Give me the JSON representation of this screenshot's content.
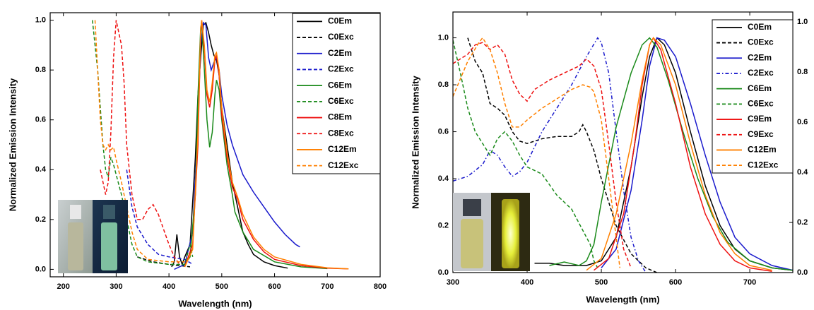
{
  "chart_data": [
    {
      "type": "line",
      "x_label": "Wavelength (nm)",
      "y_label": "Normalized Emission Intensity",
      "xlim": [
        175,
        800
      ],
      "ylim": [
        -0.03,
        1.03
      ],
      "xticks": [
        200,
        300,
        400,
        500,
        600,
        700,
        800
      ],
      "yticks": [
        {
          "value": 0,
          "label": "0.0"
        },
        0.2,
        0.4,
        0.6,
        0.8,
        {
          "value": 1,
          "label": "1.0"
        }
      ],
      "legend": "upper right",
      "series": [
        {
          "name": "C0Em",
          "color": "#000000",
          "dash": "solid",
          "x": [
            405,
            410,
            415,
            420,
            425,
            430,
            440,
            450,
            455,
            460,
            465,
            470,
            475,
            480,
            485,
            490,
            495,
            500,
            510,
            520,
            530,
            540,
            550,
            560,
            580,
            600,
            625
          ],
          "values": [
            0.01,
            0.03,
            0.14,
            0.05,
            0.02,
            0.05,
            0.1,
            0.45,
            0.7,
            0.85,
            0.98,
            0.99,
            0.95,
            0.9,
            0.86,
            0.84,
            0.78,
            0.65,
            0.5,
            0.35,
            0.25,
            0.15,
            0.1,
            0.06,
            0.03,
            0.015,
            0.005
          ]
        },
        {
          "name": "C0Exc",
          "color": "#000000",
          "dash": "dashed",
          "x": [
            340,
            370,
            400,
            420,
            440
          ],
          "values": [
            0.05,
            0.03,
            0.02,
            0.015,
            0.01
          ]
        },
        {
          "name": "C2Em",
          "color": "#1a1acc",
          "dash": "solid",
          "x": [
            410,
            430,
            445,
            455,
            460,
            465,
            470,
            475,
            480,
            485,
            490,
            495,
            500,
            510,
            520,
            530,
            540,
            560,
            580,
            600,
            620,
            640,
            648
          ],
          "values": [
            0.0,
            0.02,
            0.15,
            0.6,
            0.9,
            0.99,
            0.98,
            0.85,
            0.8,
            0.83,
            0.85,
            0.8,
            0.7,
            0.58,
            0.5,
            0.44,
            0.38,
            0.31,
            0.25,
            0.19,
            0.14,
            0.1,
            0.09
          ]
        },
        {
          "name": "C2Exc",
          "color": "#1a1acc",
          "dash": "dashed",
          "x": [
            320,
            330,
            340,
            360,
            380,
            400,
            430,
            445
          ],
          "values": [
            0.4,
            0.25,
            0.17,
            0.1,
            0.06,
            0.05,
            0.04,
            0.02
          ]
        },
        {
          "name": "C6Em",
          "color": "#1a8a1a",
          "dash": "solid",
          "x": [
            430,
            440,
            450,
            455,
            460,
            462,
            467,
            472,
            477,
            482,
            487,
            490,
            495,
            500,
            510,
            520,
            525,
            540,
            560,
            600,
            650,
            700
          ],
          "values": [
            0.02,
            0.05,
            0.3,
            0.7,
            0.97,
            0.99,
            0.8,
            0.6,
            0.49,
            0.55,
            0.7,
            0.76,
            0.72,
            0.6,
            0.42,
            0.3,
            0.23,
            0.15,
            0.08,
            0.03,
            0.01,
            0.003
          ]
        },
        {
          "name": "C6Exc",
          "color": "#1a8a1a",
          "dash": "dashed",
          "x": [
            255,
            265,
            275,
            280,
            285,
            290,
            295,
            300,
            310,
            320,
            330,
            340,
            360,
            400,
            430,
            440,
            445
          ],
          "values": [
            1.0,
            0.8,
            0.5,
            0.4,
            0.37,
            0.45,
            0.42,
            0.38,
            0.3,
            0.2,
            0.1,
            0.05,
            0.03,
            0.02,
            0.02,
            0.1,
            0.05
          ]
        },
        {
          "name": "C8Em",
          "color": "#ee1111",
          "dash": "solid",
          "x": [
            430,
            445,
            455,
            460,
            462,
            467,
            472,
            477,
            482,
            487,
            490,
            495,
            500,
            510,
            520,
            530,
            540,
            560,
            580,
            600,
            650,
            700,
            740
          ],
          "values": [
            0.01,
            0.1,
            0.5,
            0.95,
            1.0,
            0.88,
            0.7,
            0.65,
            0.72,
            0.84,
            0.86,
            0.78,
            0.62,
            0.45,
            0.33,
            0.28,
            0.2,
            0.12,
            0.07,
            0.04,
            0.015,
            0.005,
            0.002
          ]
        },
        {
          "name": "C8Exc",
          "color": "#ee1111",
          "dash": "dashed",
          "x": [
            270,
            280,
            285,
            290,
            295,
            300,
            305,
            310,
            315,
            320,
            330,
            340,
            350,
            360,
            370,
            380,
            390,
            400,
            410,
            420
          ],
          "values": [
            0.4,
            0.3,
            0.35,
            0.55,
            0.85,
            1.0,
            0.95,
            0.9,
            0.75,
            0.5,
            0.3,
            0.2,
            0.2,
            0.24,
            0.26,
            0.22,
            0.16,
            0.1,
            0.05,
            0.02
          ]
        },
        {
          "name": "C12Em",
          "color": "#ff8000",
          "dash": "solid",
          "x": [
            430,
            445,
            455,
            460,
            462,
            467,
            472,
            477,
            482,
            487,
            490,
            495,
            500,
            510,
            520,
            530,
            540,
            560,
            580,
            600,
            650,
            700,
            740
          ],
          "values": [
            0.01,
            0.08,
            0.55,
            0.96,
            1.0,
            0.9,
            0.72,
            0.67,
            0.75,
            0.86,
            0.87,
            0.8,
            0.65,
            0.47,
            0.35,
            0.29,
            0.22,
            0.13,
            0.08,
            0.05,
            0.02,
            0.006,
            0.002
          ]
        },
        {
          "name": "C12Exc",
          "color": "#ff8000",
          "dash": "dashed",
          "x": [
            260,
            265,
            270,
            275,
            280,
            285,
            290,
            295,
            300,
            310,
            320,
            330,
            340,
            360,
            400,
            430
          ],
          "values": [
            1.0,
            0.8,
            0.6,
            0.5,
            0.48,
            0.5,
            0.48,
            0.49,
            0.44,
            0.35,
            0.25,
            0.15,
            0.08,
            0.04,
            0.03,
            0.03
          ]
        }
      ]
    },
    {
      "type": "line",
      "x_label": "Wavelength (nm)",
      "y_label": "Normalized Emission Intensity",
      "xlim": [
        300,
        758
      ],
      "ylim": [
        0,
        1.11
      ],
      "y2lim": [
        0,
        1.04
      ],
      "xticks": [
        300,
        400,
        500,
        600,
        700
      ],
      "yticks": [
        {
          "value": 0,
          "label": "0.0"
        },
        0.2,
        0.4,
        0.6,
        0.8,
        {
          "value": 1,
          "label": "1.0"
        }
      ],
      "y2ticks": [
        {
          "value": 0,
          "label": "0.0"
        },
        0.2,
        0.4,
        0.6,
        0.8,
        {
          "value": 1,
          "label": "1.0"
        }
      ],
      "legend": "upper right",
      "series": [
        {
          "name": "C0Em",
          "color": "#000000",
          "dash": "solid",
          "x": [
            410,
            430,
            450,
            480,
            500,
            520,
            540,
            555,
            565,
            575,
            585,
            600,
            620,
            640,
            660,
            680,
            700,
            730,
            758
          ],
          "values": [
            0.04,
            0.04,
            0.03,
            0.03,
            0.05,
            0.15,
            0.45,
            0.75,
            0.92,
            1.0,
            0.97,
            0.85,
            0.6,
            0.37,
            0.2,
            0.1,
            0.05,
            0.02,
            0.01
          ]
        },
        {
          "name": "C0Exc",
          "color": "#000000",
          "dash": "dashed",
          "x": [
            320,
            330,
            340,
            350,
            360,
            370,
            380,
            390,
            400,
            420,
            440,
            460,
            470,
            475,
            480,
            490,
            500,
            520,
            540,
            560,
            575
          ],
          "values": [
            1.0,
            0.9,
            0.85,
            0.72,
            0.7,
            0.67,
            0.6,
            0.56,
            0.55,
            0.57,
            0.58,
            0.58,
            0.6,
            0.63,
            0.6,
            0.52,
            0.4,
            0.2,
            0.08,
            0.02,
            0.0
          ]
        },
        {
          "name": "C2Em",
          "color": "#1a1acc",
          "dash": "solid",
          "x": [
            500,
            520,
            540,
            555,
            565,
            575,
            585,
            600,
            620,
            640,
            660,
            680,
            700,
            730,
            758
          ],
          "values": [
            0.02,
            0.1,
            0.35,
            0.65,
            0.88,
            1.0,
            0.99,
            0.92,
            0.72,
            0.5,
            0.3,
            0.15,
            0.08,
            0.03,
            0.01
          ]
        },
        {
          "name": "C2Exc",
          "color": "#1a1acc",
          "dash": "dashdot",
          "x": [
            300,
            320,
            340,
            350,
            360,
            370,
            380,
            390,
            400,
            420,
            440,
            460,
            480,
            495,
            500,
            510,
            520,
            530,
            540,
            550,
            560
          ],
          "values": [
            0.39,
            0.41,
            0.46,
            0.52,
            0.5,
            0.45,
            0.41,
            0.43,
            0.47,
            0.6,
            0.7,
            0.8,
            0.92,
            1.0,
            0.98,
            0.85,
            0.6,
            0.35,
            0.15,
            0.05,
            0.0
          ]
        },
        {
          "name": "C6Em",
          "color": "#1a8a1a",
          "dash": "solid",
          "x": [
            430,
            450,
            470,
            480,
            490,
            500,
            520,
            540,
            555,
            565,
            575,
            590,
            610,
            630,
            650,
            670,
            700,
            730,
            758
          ],
          "values": [
            0.03,
            0.045,
            0.03,
            0.05,
            0.12,
            0.3,
            0.62,
            0.85,
            0.97,
            1.0,
            0.96,
            0.82,
            0.6,
            0.4,
            0.24,
            0.13,
            0.05,
            0.02,
            0.01
          ]
        },
        {
          "name": "C6Exc",
          "color": "#1a8a1a",
          "dash": "dashed",
          "x": [
            300,
            310,
            320,
            330,
            340,
            350,
            360,
            370,
            380,
            390,
            400,
            420,
            440,
            460,
            475,
            485,
            490,
            495
          ],
          "values": [
            0.99,
            0.85,
            0.7,
            0.6,
            0.55,
            0.5,
            0.57,
            0.6,
            0.56,
            0.5,
            0.45,
            0.42,
            0.33,
            0.27,
            0.18,
            0.12,
            0.05,
            0.02
          ]
        },
        {
          "name": "C9Em",
          "color": "#ee1111",
          "dash": "solid",
          "x": [
            490,
            510,
            530,
            545,
            555,
            565,
            570,
            580,
            600,
            620,
            640,
            660,
            680,
            700,
            730
          ],
          "values": [
            0.01,
            0.06,
            0.25,
            0.55,
            0.8,
            0.97,
            1.0,
            0.95,
            0.72,
            0.45,
            0.25,
            0.12,
            0.05,
            0.02,
            0.005
          ]
        },
        {
          "name": "C9Exc",
          "color": "#ee1111",
          "dash": "dashed",
          "x": [
            300,
            320,
            330,
            340,
            350,
            360,
            370,
            380,
            390,
            400,
            410,
            430,
            450,
            470,
            480,
            490,
            500,
            510,
            520,
            530,
            540
          ],
          "values": [
            0.89,
            0.93,
            0.97,
            0.98,
            0.95,
            0.97,
            0.93,
            0.82,
            0.76,
            0.73,
            0.78,
            0.82,
            0.85,
            0.88,
            0.91,
            0.88,
            0.78,
            0.55,
            0.3,
            0.1,
            0.02
          ]
        },
        {
          "name": "C12Em",
          "color": "#ff8000",
          "dash": "solid",
          "x": [
            480,
            500,
            520,
            540,
            555,
            565,
            570,
            580,
            600,
            620,
            640,
            660,
            680,
            700,
            730
          ],
          "values": [
            0.01,
            0.06,
            0.25,
            0.55,
            0.82,
            0.97,
            1.0,
            0.97,
            0.8,
            0.55,
            0.33,
            0.17,
            0.08,
            0.03,
            0.01
          ]
        },
        {
          "name": "C12Exc",
          "color": "#ff8000",
          "dash": "dashed",
          "x": [
            300,
            320,
            335,
            340,
            350,
            360,
            370,
            380,
            390,
            400,
            420,
            440,
            460,
            475,
            485,
            490,
            500,
            510,
            520,
            525
          ],
          "values": [
            0.75,
            0.9,
            0.98,
            1.0,
            0.95,
            0.85,
            0.72,
            0.62,
            0.62,
            0.65,
            0.7,
            0.74,
            0.78,
            0.8,
            0.79,
            0.77,
            0.65,
            0.4,
            0.15,
            0.02
          ]
        }
      ]
    }
  ]
}
